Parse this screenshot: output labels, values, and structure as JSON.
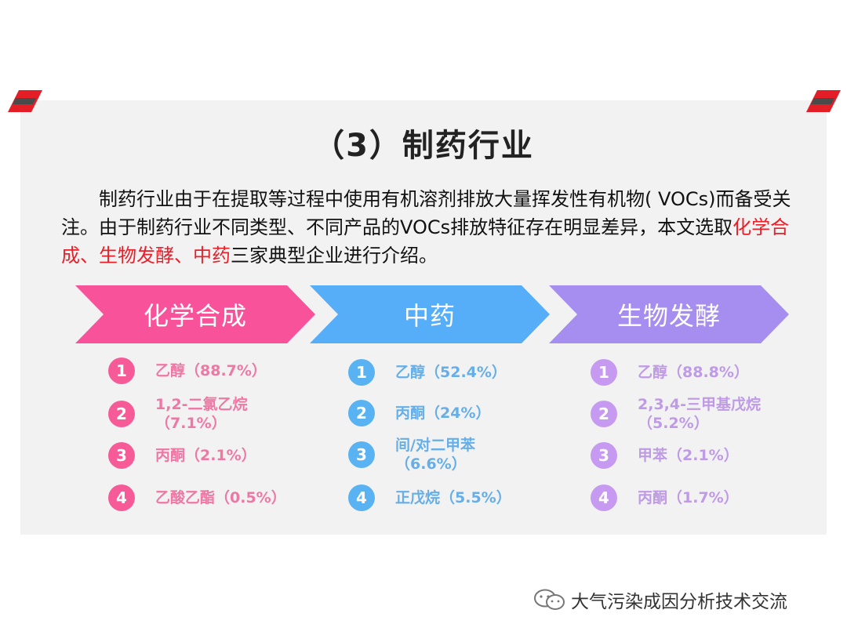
{
  "title": "（3）制药行业",
  "intro": {
    "part1": "制药行业由于在提取等过程中使用有机溶剂排放大量挥发性有机物( VOCs)而备受关注。由于制药行业不同类型、不同产品的VOCs排放特征存在明显差异，本文选取",
    "highlight": "化学合成、生物发酵、中药",
    "part2": "三家典型企业进行介绍。"
  },
  "columns": [
    {
      "label": "化学合成",
      "color": "#f8539a",
      "items": [
        {
          "num": "1",
          "text": "乙醇（88.7%）"
        },
        {
          "num": "2",
          "text": "1,2-二氯乙烷\n（7.1%）"
        },
        {
          "num": "3",
          "text": "丙酮（2.1%）"
        },
        {
          "num": "4",
          "text": "乙酸乙酯（0.5%）"
        }
      ]
    },
    {
      "label": "中药",
      "color": "#55aef7",
      "items": [
        {
          "num": "1",
          "text": "乙醇（52.4%）"
        },
        {
          "num": "2",
          "text": "丙酮（24%）"
        },
        {
          "num": "3",
          "text": "间/对二甲苯\n（6.6%）"
        },
        {
          "num": "4",
          "text": "正戊烷（5.5%）"
        }
      ]
    },
    {
      "label": "生物发酵",
      "color": "#a68df0",
      "items": [
        {
          "num": "1",
          "text": "乙醇（88.8%）"
        },
        {
          "num": "2",
          "text": "2,3,4-三甲基戊烷\n（5.2%）"
        },
        {
          "num": "3",
          "text": "甲苯（2.1%）"
        },
        {
          "num": "4",
          "text": "丙酮（1.7%）"
        }
      ]
    }
  ],
  "watermark": "大气污染成因分析技术交流",
  "icons": {
    "corner": "red-slash-decoration",
    "watermark": "wechat-icon"
  }
}
